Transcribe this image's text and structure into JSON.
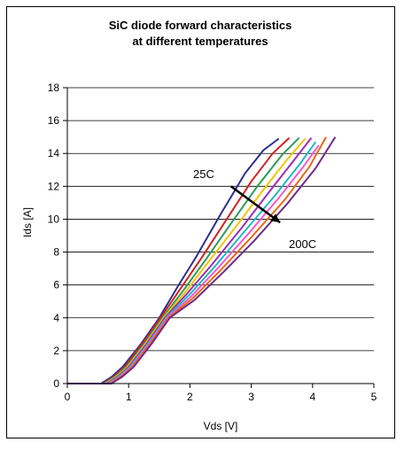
{
  "chart_data": {
    "type": "line",
    "title_lines": [
      "SiC diode forward characteristics",
      "at different temperatures"
    ],
    "xlabel": "Vds  [V]",
    "ylabel": "Ids  [A]",
    "xlim": [
      0,
      5
    ],
    "ylim": [
      0,
      18
    ],
    "x_ticks": [
      "0",
      "1",
      "2",
      "3",
      "4",
      "5"
    ],
    "y_ticks": [
      "0",
      "2",
      "4",
      "6",
      "8",
      "10",
      "12",
      "14",
      "16",
      "18"
    ],
    "grid": "horizontal",
    "legend": "none",
    "annotations": {
      "low_temp": "25C",
      "high_temp": "200C"
    },
    "series": [
      {
        "color": "#2b2f8f",
        "points": [
          [
            0,
            0
          ],
          [
            0.55,
            0
          ],
          [
            0.72,
            0.4
          ],
          [
            0.9,
            1.0
          ],
          [
            1.2,
            2.4
          ],
          [
            1.5,
            4.0
          ],
          [
            1.8,
            5.9
          ],
          [
            2.1,
            7.7
          ],
          [
            2.5,
            10.3
          ],
          [
            2.9,
            12.8
          ],
          [
            3.2,
            14.2
          ],
          [
            3.45,
            14.9
          ]
        ]
      },
      {
        "color": "#d42020",
        "points": [
          [
            0,
            0
          ],
          [
            0.58,
            0
          ],
          [
            0.75,
            0.4
          ],
          [
            0.93,
            1.0
          ],
          [
            1.22,
            2.4
          ],
          [
            1.52,
            4.0
          ],
          [
            1.85,
            5.8
          ],
          [
            2.2,
            7.7
          ],
          [
            2.6,
            10.0
          ],
          [
            3.0,
            12.3
          ],
          [
            3.35,
            14.0
          ],
          [
            3.62,
            14.95
          ]
        ]
      },
      {
        "color": "#2e9a5a",
        "points": [
          [
            0,
            0
          ],
          [
            0.6,
            0
          ],
          [
            0.77,
            0.4
          ],
          [
            0.96,
            1.0
          ],
          [
            1.25,
            2.4
          ],
          [
            1.55,
            4.0
          ],
          [
            1.9,
            5.7
          ],
          [
            2.25,
            7.5
          ],
          [
            2.7,
            9.9
          ],
          [
            3.1,
            12.0
          ],
          [
            3.5,
            13.9
          ],
          [
            3.78,
            14.95
          ]
        ]
      },
      {
        "color": "#f5c400",
        "points": [
          [
            0,
            0
          ],
          [
            0.62,
            0
          ],
          [
            0.79,
            0.4
          ],
          [
            0.98,
            1.0
          ],
          [
            1.27,
            2.4
          ],
          [
            1.57,
            4.0
          ],
          [
            1.93,
            5.6
          ],
          [
            2.3,
            7.4
          ],
          [
            2.8,
            9.8
          ],
          [
            3.2,
            11.8
          ],
          [
            3.6,
            13.7
          ],
          [
            3.88,
            14.9
          ]
        ]
      },
      {
        "color": "#9b2fb0",
        "points": [
          [
            0,
            0
          ],
          [
            0.64,
            0
          ],
          [
            0.81,
            0.4
          ],
          [
            1.0,
            1.0
          ],
          [
            1.29,
            2.4
          ],
          [
            1.59,
            4.0
          ],
          [
            1.96,
            5.5
          ],
          [
            2.35,
            7.2
          ],
          [
            2.85,
            9.5
          ],
          [
            3.3,
            11.7
          ],
          [
            3.7,
            13.6
          ],
          [
            3.98,
            14.95
          ]
        ]
      },
      {
        "color": "#1fb8c9",
        "points": [
          [
            0,
            0
          ],
          [
            0.66,
            0
          ],
          [
            0.83,
            0.4
          ],
          [
            1.02,
            1.0
          ],
          [
            1.31,
            2.4
          ],
          [
            1.61,
            4.0
          ],
          [
            1.99,
            5.4
          ],
          [
            2.4,
            7.1
          ],
          [
            2.9,
            9.3
          ],
          [
            3.4,
            11.5
          ],
          [
            3.8,
            13.4
          ],
          [
            4.05,
            14.7
          ]
        ]
      },
      {
        "color": "#ff55cc",
        "points": [
          [
            0,
            0
          ],
          [
            0.68,
            0
          ],
          [
            0.85,
            0.4
          ],
          [
            1.04,
            1.0
          ],
          [
            1.33,
            2.4
          ],
          [
            1.63,
            4.0
          ],
          [
            2.02,
            5.3
          ],
          [
            2.45,
            7.0
          ],
          [
            2.95,
            9.1
          ],
          [
            3.45,
            11.3
          ],
          [
            3.85,
            13.2
          ],
          [
            4.1,
            14.5
          ]
        ]
      },
      {
        "color": "#e86a18",
        "points": [
          [
            0,
            0
          ],
          [
            0.7,
            0
          ],
          [
            0.87,
            0.4
          ],
          [
            1.06,
            1.0
          ],
          [
            1.35,
            2.4
          ],
          [
            1.65,
            4.0
          ],
          [
            2.05,
            5.2
          ],
          [
            2.5,
            6.9
          ],
          [
            3.0,
            8.9
          ],
          [
            3.55,
            11.2
          ],
          [
            3.95,
            13.2
          ],
          [
            4.22,
            15.0
          ]
        ]
      },
      {
        "color": "#6d2a8a",
        "points": [
          [
            0,
            0
          ],
          [
            0.72,
            0
          ],
          [
            0.89,
            0.4
          ],
          [
            1.08,
            1.0
          ],
          [
            1.37,
            2.4
          ],
          [
            1.67,
            4.0
          ],
          [
            2.08,
            5.1
          ],
          [
            2.55,
            6.8
          ],
          [
            3.05,
            8.7
          ],
          [
            3.6,
            11.0
          ],
          [
            4.05,
            13.1
          ],
          [
            4.37,
            15.0
          ]
        ]
      }
    ]
  }
}
